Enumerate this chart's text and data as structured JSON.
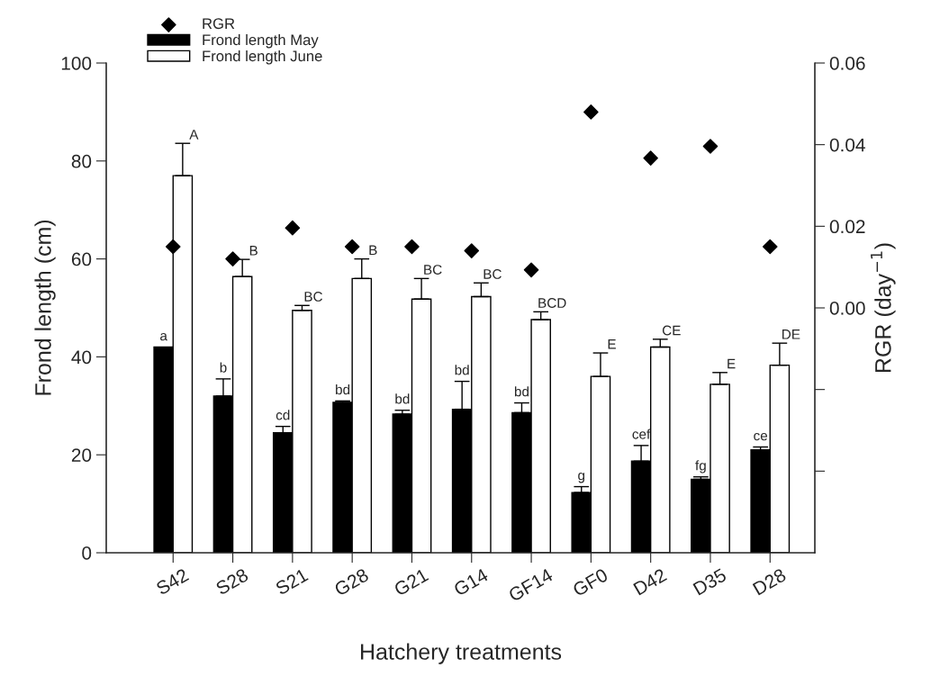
{
  "chart_data": {
    "type": "bar",
    "categories": [
      "S42",
      "S28",
      "S21",
      "G28",
      "G21",
      "G14",
      "GF14",
      "GF0",
      "D42",
      "D35",
      "D28"
    ],
    "xlabel": "Hatchery treatments",
    "ylabel": "Frond length (cm)",
    "y2label": "RGR (day$^{−1}$)",
    "series": [
      {
        "name": "Frond length May",
        "color": "#000000",
        "values": [
          42,
          32,
          24.5,
          30.7,
          28.3,
          29.3,
          28.6,
          12.3,
          18.7,
          15,
          21
        ],
        "errors": [
          null,
          3.5,
          1.3,
          0.3,
          0.8,
          5.7,
          2,
          1.2,
          3.2,
          0.5,
          0.6
        ],
        "value_labels": [
          "a",
          "b",
          "cd",
          "bd",
          "bd",
          "bd",
          "bd",
          "g",
          "cef",
          "fg",
          "ce"
        ]
      },
      {
        "name": "Frond length June",
        "color": "#ffffff",
        "values": [
          77,
          56.4,
          49.5,
          56,
          51.8,
          52.3,
          47.6,
          36,
          42,
          34.4,
          38.3
        ],
        "errors": [
          6.6,
          3.5,
          1,
          4,
          4.2,
          2.8,
          1.6,
          4.8,
          1.6,
          2.4,
          4.5
        ],
        "value_labels": [
          "A",
          "B",
          "BC",
          "B",
          "BC",
          "BC",
          "BCD",
          "E",
          "CE",
          "E",
          "DE"
        ]
      },
      {
        "name": "RGR",
        "type": "scatter",
        "axis": "y2",
        "marker": "diamond",
        "color": "#000000",
        "values": [
          0.015,
          0.012,
          0.0196,
          0.015,
          0.015,
          0.014,
          0.0093,
          0.048,
          0.0367,
          0.0396,
          0.015
        ]
      }
    ],
    "ylim": [
      0,
      100
    ],
    "yticks": [
      0,
      20,
      40,
      60,
      80,
      100
    ],
    "y2lim": [
      -0.06,
      0.06
    ],
    "y2ticks": [
      {
        "value": -0.04,
        "label": null
      },
      {
        "value": -0.02,
        "label": null
      },
      {
        "value": 0,
        "label": "0.00"
      },
      {
        "value": 0.02,
        "label": "0.02"
      },
      {
        "value": 0.04,
        "label": "0.04"
      },
      {
        "value": 0.06,
        "label": "0.06"
      }
    ],
    "legend": "top left",
    "grid": false
  }
}
